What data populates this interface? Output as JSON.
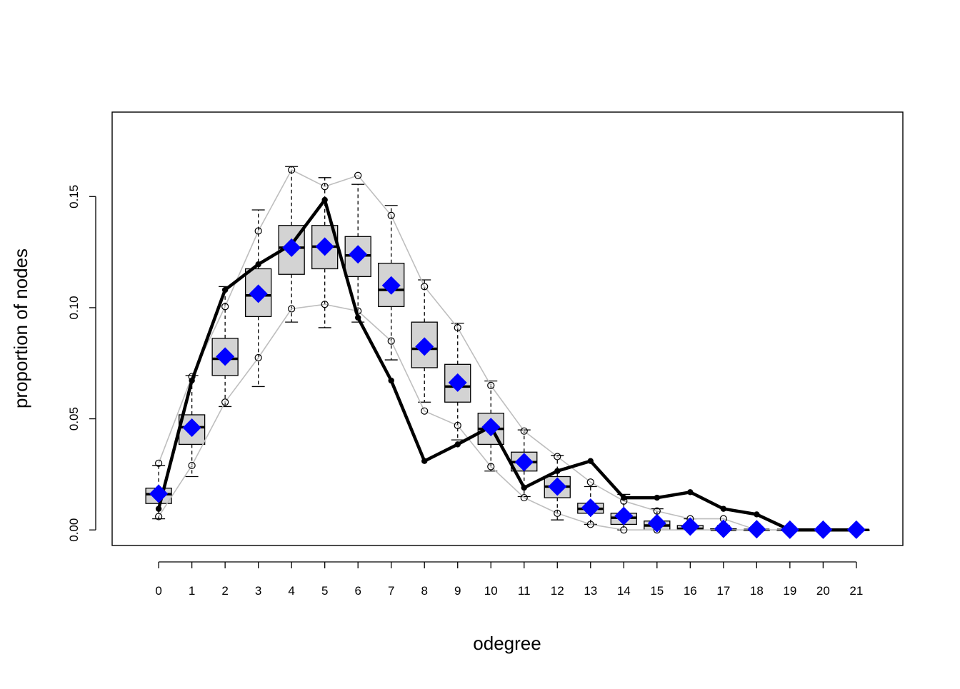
{
  "chart_data": {
    "type": "boxplot",
    "title": "",
    "xlabel": "odegree",
    "ylabel": "proportion of nodes",
    "xlim": [
      -1.4,
      22.4
    ],
    "ylim": [
      -0.007,
      0.188
    ],
    "grid": false,
    "legend": "none",
    "y_ticks": [
      0.0,
      0.05,
      0.1,
      0.15
    ],
    "y_tick_labels": [
      "0.00",
      "0.05",
      "0.10",
      "0.15"
    ],
    "categories": [
      "0",
      "1",
      "2",
      "3",
      "4",
      "5",
      "6",
      "7",
      "8",
      "9",
      "10",
      "11",
      "12",
      "13",
      "14",
      "15",
      "16",
      "17",
      "18",
      "19",
      "20",
      "21"
    ],
    "boxes": [
      {
        "q1": 0.0119,
        "median": 0.0161,
        "q3": 0.0188,
        "whisker_low": 0.005,
        "whisker_high": 0.029
      },
      {
        "q1": 0.0385,
        "median": 0.0462,
        "q3": 0.0518,
        "whisker_low": 0.024,
        "whisker_high": 0.0695
      },
      {
        "q1": 0.0695,
        "median": 0.077,
        "q3": 0.0862,
        "whisker_low": 0.0555,
        "whisker_high": 0.1095
      },
      {
        "q1": 0.096,
        "median": 0.1055,
        "q3": 0.1175,
        "whisker_low": 0.0645,
        "whisker_high": 0.144
      },
      {
        "q1": 0.115,
        "median": 0.127,
        "q3": 0.137,
        "whisker_low": 0.0935,
        "whisker_high": 0.1635
      },
      {
        "q1": 0.1175,
        "median": 0.1275,
        "q3": 0.137,
        "whisker_low": 0.091,
        "whisker_high": 0.1585
      },
      {
        "q1": 0.114,
        "median": 0.1235,
        "q3": 0.132,
        "whisker_low": 0.0935,
        "whisker_high": 0.1555
      },
      {
        "q1": 0.1005,
        "median": 0.108,
        "q3": 0.12,
        "whisker_low": 0.0765,
        "whisker_high": 0.146
      },
      {
        "q1": 0.073,
        "median": 0.0815,
        "q3": 0.0935,
        "whisker_low": 0.0575,
        "whisker_high": 0.1125
      },
      {
        "q1": 0.0575,
        "median": 0.0645,
        "q3": 0.0745,
        "whisker_low": 0.0405,
        "whisker_high": 0.093
      },
      {
        "q1": 0.0385,
        "median": 0.0455,
        "q3": 0.0525,
        "whisker_low": 0.0265,
        "whisker_high": 0.067
      },
      {
        "q1": 0.0265,
        "median": 0.0305,
        "q3": 0.035,
        "whisker_low": 0.015,
        "whisker_high": 0.045
      },
      {
        "q1": 0.0145,
        "median": 0.0195,
        "q3": 0.024,
        "whisker_low": 0.0045,
        "whisker_high": 0.0335
      },
      {
        "q1": 0.0075,
        "median": 0.0095,
        "q3": 0.012,
        "whisker_low": 0.0025,
        "whisker_high": 0.0195
      },
      {
        "q1": 0.0025,
        "median": 0.0055,
        "q3": 0.0075,
        "whisker_low": 0.0,
        "whisker_high": 0.016
      },
      {
        "q1": 0.0,
        "median": 0.002,
        "q3": 0.004,
        "whisker_low": 0.0,
        "whisker_high": 0.0095
      },
      {
        "q1": 0.0,
        "median": 0.0005,
        "q3": 0.002,
        "whisker_low": 0.0,
        "whisker_high": 0.005
      },
      {
        "q1": 0.0,
        "median": 0.0,
        "q3": 0.0005,
        "whisker_low": 0.0,
        "whisker_high": 0.002
      },
      {
        "q1": 0.0,
        "median": 0.0,
        "q3": 0.0,
        "whisker_low": 0.0,
        "whisker_high": 0.0005
      },
      {
        "q1": 0.0,
        "median": 0.0,
        "q3": 0.0,
        "whisker_low": 0.0,
        "whisker_high": 0.0
      },
      {
        "q1": 0.0,
        "median": 0.0,
        "q3": 0.0,
        "whisker_low": 0.0,
        "whisker_high": 0.0
      },
      {
        "q1": 0.0,
        "median": 0.0,
        "q3": 0.0,
        "whisker_low": 0.0,
        "whisker_high": 0.0
      }
    ],
    "series": [
      {
        "values": [
          0.0095,
          0.0672,
          0.108,
          0.1195,
          0.1285,
          0.1485,
          0.0955,
          0.0672,
          0.031,
          0.0385,
          0.0465,
          0.019,
          0.0265,
          0.031,
          0.0145,
          0.0145,
          0.017,
          0.0095,
          0.007,
          0.0,
          0.0,
          0.0
        ]
      },
      {
        "values": [
          0.0163,
          0.046,
          0.078,
          0.1063,
          0.127,
          0.1275,
          0.124,
          0.11,
          0.0825,
          0.0663,
          0.0463,
          0.0305,
          0.0195,
          0.01,
          0.0063,
          0.003,
          0.0015,
          0.0005,
          0.0003,
          0.0001,
          0.0001,
          0.0001
        ]
      },
      {
        "values": [
          0.03,
          0.069,
          0.1005,
          0.1345,
          0.162,
          0.1545,
          0.1595,
          0.1415,
          0.1095,
          0.091,
          0.065,
          0.0445,
          0.033,
          0.0215,
          0.013,
          0.0085,
          0.005,
          0.005,
          0.0,
          0.0,
          0.0,
          0.0
        ]
      },
      {
        "values": [
          0.006,
          0.029,
          0.0575,
          0.0775,
          0.0995,
          0.1015,
          0.0985,
          0.085,
          0.0535,
          0.047,
          0.0285,
          0.0145,
          0.0075,
          0.0025,
          0.0,
          0.0,
          0.0,
          0.0,
          0.0,
          0.0,
          0.0,
          0.0
        ]
      }
    ],
    "colors": {
      "box_fill": "#d3d3d3",
      "box_stroke": "#000000",
      "observed_line": "#000000",
      "mean_marker": "#0000ff",
      "band_line": "#bebebe"
    }
  }
}
